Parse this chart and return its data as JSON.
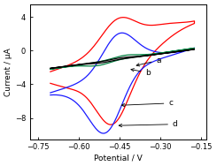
{
  "title": "",
  "xlabel": "Potential / V",
  "ylabel": "Current / μA",
  "xlim": [
    -0.78,
    -0.13
  ],
  "ylim": [
    -10.5,
    5.5
  ],
  "xticks": [
    -0.75,
    -0.6,
    -0.45,
    -0.3,
    -0.15
  ],
  "yticks": [
    -8,
    -4,
    0,
    4
  ],
  "background_color": "#ffffff",
  "curves": {
    "a": {
      "color": "#000000"
    },
    "b": {
      "color": "#008040"
    },
    "c": {
      "color": "#1a1aff"
    },
    "d": {
      "color": "#ff0000"
    }
  }
}
